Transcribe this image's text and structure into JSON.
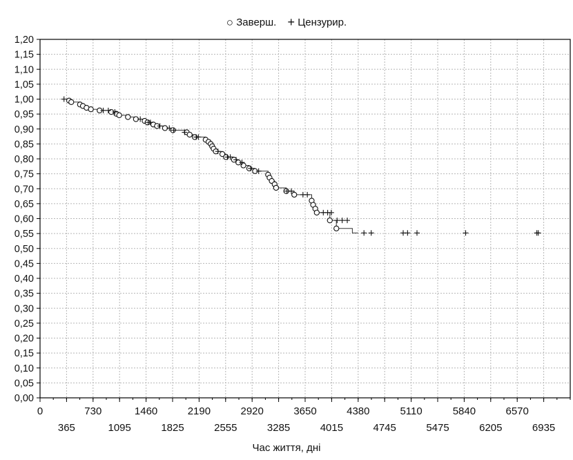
{
  "chart_data": {
    "type": "line",
    "title": "",
    "xlabel": "Час життя, дні",
    "ylabel": "",
    "xlim": [
      0,
      7300
    ],
    "ylim": [
      0.0,
      1.2
    ],
    "x_ticks_upper": [
      "0",
      "730",
      "1460",
      "2190",
      "2920",
      "3650",
      "4380",
      "5110",
      "5840",
      "6570"
    ],
    "x_ticks_upper_values": [
      0,
      730,
      1460,
      2190,
      2920,
      3650,
      4380,
      5110,
      5840,
      6570
    ],
    "x_ticks_lower": [
      "365",
      "1095",
      "1825",
      "2555",
      "3285",
      "4015",
      "4745",
      "5475",
      "6205",
      "6935"
    ],
    "x_ticks_lower_values": [
      365,
      1095,
      1825,
      2555,
      3285,
      4015,
      4745,
      5475,
      6205,
      6935
    ],
    "y_ticks": [
      "0,00",
      "0,05",
      "0,10",
      "0,15",
      "0,20",
      "0,25",
      "0,30",
      "0,35",
      "0,40",
      "0,45",
      "0,50",
      "0,55",
      "0,60",
      "0,65",
      "0,70",
      "0,75",
      "0,80",
      "0,85",
      "0,90",
      "0,95",
      "1,00",
      "1,05",
      "1,10",
      "1,15",
      "1,20"
    ],
    "y_tick_values": [
      0,
      0.05,
      0.1,
      0.15,
      0.2,
      0.25,
      0.3,
      0.35,
      0.4,
      0.45,
      0.5,
      0.55,
      0.6,
      0.65,
      0.7,
      0.75,
      0.8,
      0.85,
      0.9,
      0.95,
      1.0,
      1.05,
      1.1,
      1.15,
      1.2
    ],
    "grid": true,
    "legend_position": "top-center",
    "series": [
      {
        "name": "Заверш.",
        "marker": "circle",
        "points": [
          [
            400,
            0.995
          ],
          [
            430,
            0.99
          ],
          [
            550,
            0.982
          ],
          [
            590,
            0.977
          ],
          [
            640,
            0.971
          ],
          [
            700,
            0.966
          ],
          [
            820,
            0.962
          ],
          [
            980,
            0.957
          ],
          [
            1050,
            0.951
          ],
          [
            1090,
            0.946
          ],
          [
            1210,
            0.94
          ],
          [
            1320,
            0.933
          ],
          [
            1440,
            0.927
          ],
          [
            1480,
            0.922
          ],
          [
            1560,
            0.915
          ],
          [
            1610,
            0.91
          ],
          [
            1720,
            0.903
          ],
          [
            1830,
            0.896
          ],
          [
            2020,
            0.889
          ],
          [
            2060,
            0.881
          ],
          [
            2130,
            0.873
          ],
          [
            2280,
            0.864
          ],
          [
            2320,
            0.857
          ],
          [
            2350,
            0.85
          ],
          [
            2370,
            0.842
          ],
          [
            2390,
            0.834
          ],
          [
            2420,
            0.825
          ],
          [
            2510,
            0.816
          ],
          [
            2560,
            0.806
          ],
          [
            2670,
            0.797
          ],
          [
            2730,
            0.788
          ],
          [
            2800,
            0.778
          ],
          [
            2880,
            0.768
          ],
          [
            2960,
            0.759
          ],
          [
            3140,
            0.747
          ],
          [
            3160,
            0.737
          ],
          [
            3190,
            0.726
          ],
          [
            3230,
            0.715
          ],
          [
            3250,
            0.703
          ],
          [
            3390,
            0.692
          ],
          [
            3500,
            0.68
          ],
          [
            3740,
            0.66
          ],
          [
            3760,
            0.646
          ],
          [
            3790,
            0.633
          ],
          [
            3810,
            0.62
          ],
          [
            3990,
            0.594
          ],
          [
            4080,
            0.567
          ]
        ]
      },
      {
        "name": "Цензурир.",
        "marker": "plus",
        "points": [
          [
            330,
            1.0
          ],
          [
            870,
            0.962
          ],
          [
            940,
            0.962
          ],
          [
            1030,
            0.957
          ],
          [
            1380,
            0.933
          ],
          [
            1490,
            0.922
          ],
          [
            1520,
            0.922
          ],
          [
            1650,
            0.91
          ],
          [
            1780,
            0.903
          ],
          [
            1840,
            0.896
          ],
          [
            1990,
            0.889
          ],
          [
            2150,
            0.873
          ],
          [
            2180,
            0.873
          ],
          [
            2450,
            0.825
          ],
          [
            2580,
            0.806
          ],
          [
            2620,
            0.806
          ],
          [
            2700,
            0.797
          ],
          [
            2780,
            0.788
          ],
          [
            2900,
            0.768
          ],
          [
            3010,
            0.759
          ],
          [
            3400,
            0.692
          ],
          [
            3460,
            0.692
          ],
          [
            3620,
            0.68
          ],
          [
            3680,
            0.68
          ],
          [
            3900,
            0.62
          ],
          [
            3960,
            0.62
          ],
          [
            4010,
            0.62
          ],
          [
            4090,
            0.594
          ],
          [
            4160,
            0.594
          ],
          [
            4230,
            0.594
          ],
          [
            4460,
            0.552
          ],
          [
            4560,
            0.552
          ],
          [
            5000,
            0.552
          ],
          [
            5060,
            0.552
          ],
          [
            5190,
            0.552
          ],
          [
            5860,
            0.552
          ],
          [
            6840,
            0.552
          ],
          [
            6860,
            0.552
          ]
        ]
      }
    ],
    "step_curve": [
      [
        330,
        1.0
      ],
      [
        400,
        0.995
      ],
      [
        430,
        0.99
      ],
      [
        550,
        0.982
      ],
      [
        590,
        0.977
      ],
      [
        640,
        0.971
      ],
      [
        700,
        0.966
      ],
      [
        820,
        0.962
      ],
      [
        980,
        0.957
      ],
      [
        1050,
        0.951
      ],
      [
        1090,
        0.946
      ],
      [
        1210,
        0.94
      ],
      [
        1320,
        0.933
      ],
      [
        1440,
        0.927
      ],
      [
        1480,
        0.922
      ],
      [
        1560,
        0.915
      ],
      [
        1610,
        0.91
      ],
      [
        1720,
        0.903
      ],
      [
        1830,
        0.896
      ],
      [
        2020,
        0.889
      ],
      [
        2060,
        0.881
      ],
      [
        2130,
        0.873
      ],
      [
        2280,
        0.864
      ],
      [
        2320,
        0.857
      ],
      [
        2350,
        0.85
      ],
      [
        2370,
        0.842
      ],
      [
        2390,
        0.834
      ],
      [
        2420,
        0.825
      ],
      [
        2510,
        0.816
      ],
      [
        2560,
        0.806
      ],
      [
        2670,
        0.797
      ],
      [
        2730,
        0.788
      ],
      [
        2800,
        0.778
      ],
      [
        2880,
        0.768
      ],
      [
        2960,
        0.759
      ],
      [
        3140,
        0.747
      ],
      [
        3160,
        0.737
      ],
      [
        3190,
        0.726
      ],
      [
        3230,
        0.715
      ],
      [
        3250,
        0.703
      ],
      [
        3390,
        0.692
      ],
      [
        3500,
        0.68
      ],
      [
        3740,
        0.66
      ],
      [
        3760,
        0.646
      ],
      [
        3790,
        0.633
      ],
      [
        3810,
        0.62
      ],
      [
        3990,
        0.594
      ],
      [
        4080,
        0.567
      ],
      [
        4300,
        0.552
      ],
      [
        4380,
        0.552
      ]
    ]
  },
  "legend": {
    "completed_symbol": "○",
    "completed_label": "Заверш.",
    "censored_symbol": "+",
    "censored_label": "Цензурир."
  },
  "colors": {
    "line": "#333333",
    "grid": "#b5b5b5",
    "axis": "#000000",
    "marker": "#111111"
  }
}
